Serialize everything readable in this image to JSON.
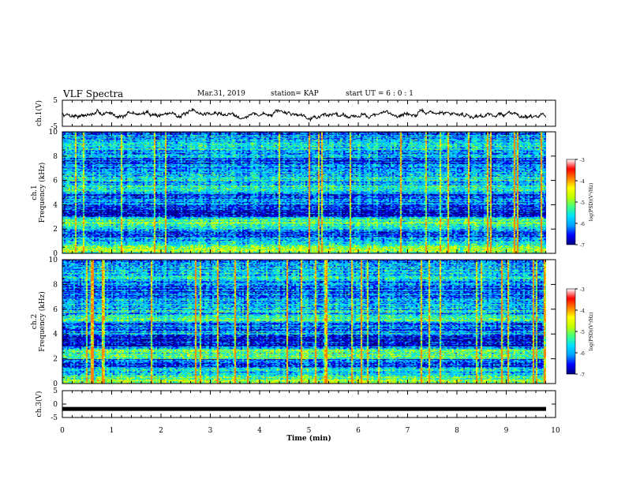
{
  "header": {
    "title": "VLF Spectra",
    "date": "Mar.31, 2019",
    "station": "station= KAP",
    "start_ut": "start  UT =   6 : 0  : 1"
  },
  "chart_data": [
    {
      "type": "line",
      "id": "ch1-waveform",
      "ylabel": "ch.1(V)",
      "ylim": [
        -5,
        5
      ],
      "yticks": [
        5,
        -5
      ],
      "xlim": [
        0,
        10
      ],
      "seed": 7,
      "level": -0.3,
      "amplitude": 1.6,
      "color": "#000000"
    },
    {
      "type": "heatmap",
      "id": "ch1-spectrogram",
      "ylabel": "ch.1",
      "ylabel2": "Frequency (kHz)",
      "ylim": [
        0,
        10
      ],
      "yticks": [
        0,
        2,
        4,
        6,
        8,
        10
      ],
      "xlim": [
        0,
        9.8
      ],
      "seed": 11,
      "colorbar": {
        "label": "log(PSD)(V²/Hz)",
        "range": [
          -7,
          -3
        ],
        "ticks": [
          "-3",
          "-4",
          "-5",
          "-6",
          "-7"
        ]
      }
    },
    {
      "type": "heatmap",
      "id": "ch2-spectrogram",
      "ylabel": "ch.2",
      "ylabel2": "Frequency (kHz)",
      "ylim": [
        0,
        10
      ],
      "yticks": [
        0,
        2,
        4,
        6,
        8,
        10
      ],
      "xlim": [
        0,
        9.8
      ],
      "seed": 23,
      "colorbar": {
        "label": "log(PSD)(V²/Hz)",
        "range": [
          -7,
          -3
        ],
        "ticks": [
          "-3",
          "-4",
          "-5",
          "-6",
          "-7"
        ]
      }
    },
    {
      "type": "line",
      "id": "ch3-waveform",
      "ylabel": "ch.3(V)",
      "ylim": [
        -5,
        5
      ],
      "yticks": [
        5,
        0,
        -5
      ],
      "xlim": [
        0,
        10
      ],
      "level": -1.8,
      "amplitude": 0,
      "color": "#000000"
    }
  ],
  "x_axis": {
    "label": "Time  (min)",
    "ticks": [
      "0",
      "1",
      "2",
      "3",
      "4",
      "5",
      "6",
      "7",
      "8",
      "9",
      "10"
    ]
  },
  "colorscale": [
    "#000080",
    "#0000ff",
    "#00a0ff",
    "#00e0ff",
    "#40ff80",
    "#c0ff00",
    "#ffff00",
    "#ff8000",
    "#ff0000",
    "#ffffff"
  ]
}
